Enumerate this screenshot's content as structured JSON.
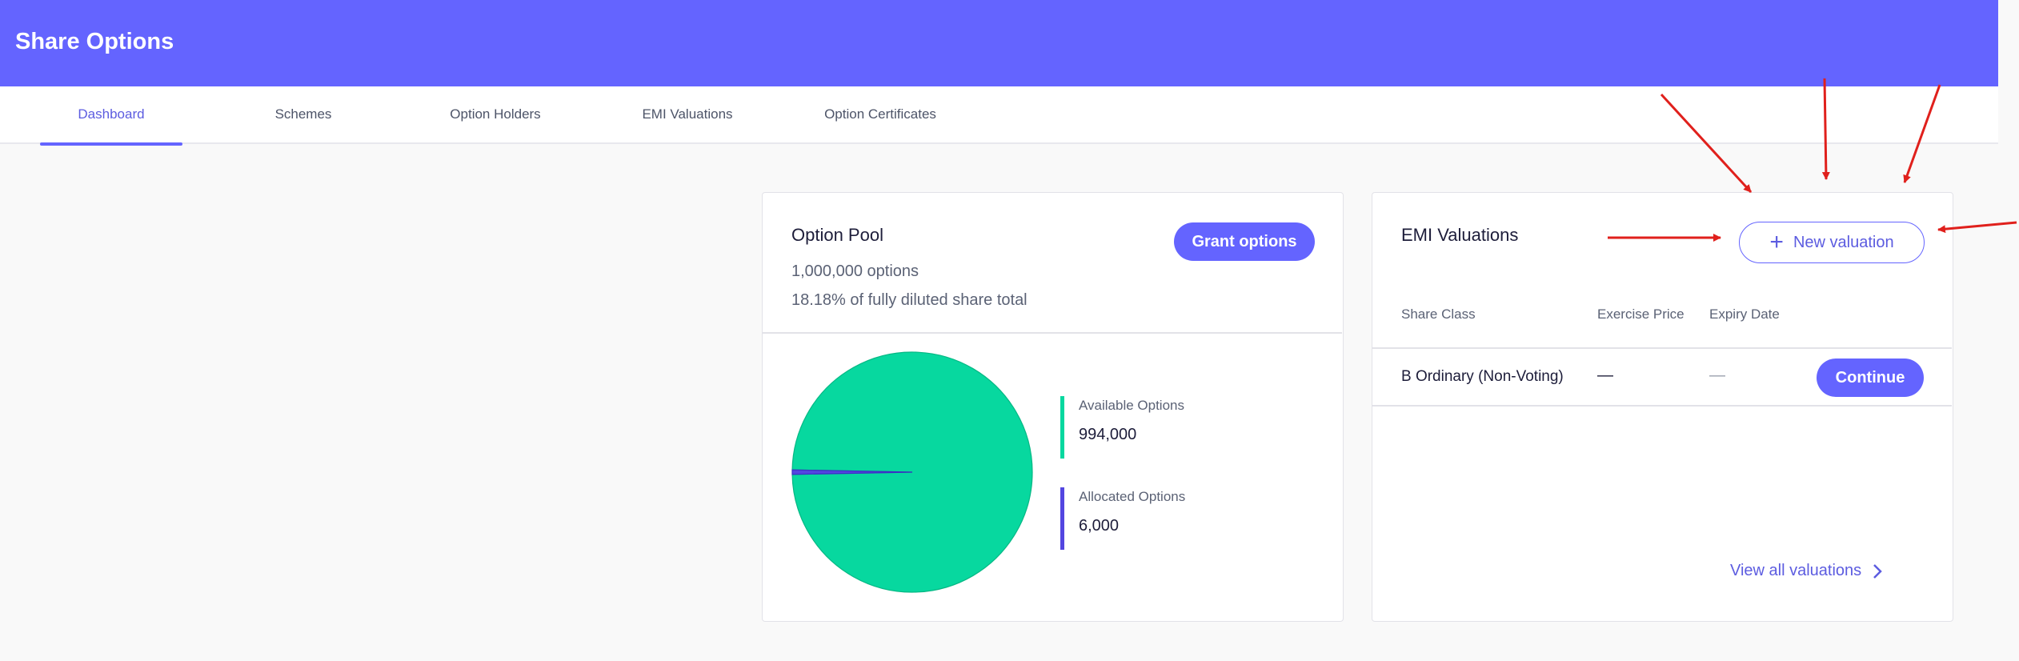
{
  "app": {
    "title": "Share Options"
  },
  "tabs": [
    {
      "label": "Dashboard",
      "active": true
    },
    {
      "label": "Schemes",
      "active": false
    },
    {
      "label": "Option Holders",
      "active": false
    },
    {
      "label": "EMI Valuations",
      "active": false
    },
    {
      "label": "Option Certificates",
      "active": false
    }
  ],
  "option_pool": {
    "title": "Option Pool",
    "total_options": "1,000,000 options",
    "share_percent": "18.18% of fully diluted share total",
    "grant_button": "Grant options",
    "legend": [
      {
        "label": "Available Options",
        "value": "994,000",
        "color": "#07d89f"
      },
      {
        "label": "Allocated Options",
        "value": "6,000",
        "color": "#5346e0"
      }
    ]
  },
  "chart_data": {
    "type": "pie",
    "slices": [
      {
        "label": "Available Options",
        "value": 994000,
        "color": "#07d89f"
      },
      {
        "label": "Allocated Options",
        "value": 6000,
        "color": "#5346e0"
      }
    ]
  },
  "emi_valuations": {
    "title": "EMI Valuations",
    "new_button": "New valuation",
    "columns": [
      "Share Class",
      "Exercise Price",
      "Expiry Date"
    ],
    "rows": [
      {
        "share_class": "B Ordinary (Non-Voting)",
        "exercise_price": "—",
        "expiry_date": "—",
        "action": "Continue"
      }
    ],
    "view_all": "View all valuations"
  },
  "colors": {
    "brand": "#6464ff",
    "annotation_arrows": "#e0201c"
  }
}
